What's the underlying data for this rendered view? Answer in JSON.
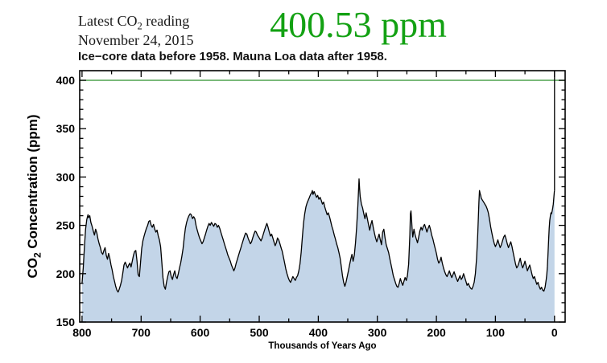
{
  "header": {
    "latest_label_pre": "Latest CO",
    "latest_label_sub": "2",
    "latest_label_post": " reading",
    "date": "November 24, 2015",
    "reading": "400.53 ppm",
    "subtitle": "Ice−core data before 1958. Mauna Loa data after 1958."
  },
  "colors": {
    "reading_green": "#13a113",
    "threshold_line_green": "#4fa44f",
    "area_fill": "#c3d5e8",
    "data_line": "#000000",
    "axis": "#000000"
  },
  "chart_data": {
    "type": "area",
    "xlabel": "Thousands of Years Ago",
    "ylabel_pre": "CO",
    "ylabel_sub": "2",
    "ylabel_post": " Concentration (ppm)",
    "x_ticks": [
      800,
      700,
      600,
      500,
      400,
      300,
      200,
      100,
      0
    ],
    "x_minor_step": 50,
    "y_ticks": [
      150,
      200,
      250,
      300,
      350,
      400
    ],
    "y_minor_step": 10,
    "xlim": [
      804,
      -18
    ],
    "ylim": [
      150,
      410
    ],
    "grid": false,
    "threshold_ppm": 400,
    "modern_spike": {
      "x": 0,
      "from_ppm": 286,
      "drawn_to_ppm": 410,
      "reading_ppm": 400.53
    },
    "points": [
      [
        800,
        190
      ],
      [
        798,
        206
      ],
      [
        796,
        228
      ],
      [
        794,
        246
      ],
      [
        792,
        256
      ],
      [
        790,
        261
      ],
      [
        789,
        258
      ],
      [
        787,
        260
      ],
      [
        785,
        253
      ],
      [
        783,
        249
      ],
      [
        781,
        244
      ],
      [
        779,
        240
      ],
      [
        777,
        246
      ],
      [
        775,
        242
      ],
      [
        773,
        236
      ],
      [
        771,
        231
      ],
      [
        769,
        227
      ],
      [
        767,
        222
      ],
      [
        765,
        220
      ],
      [
        763,
        224
      ],
      [
        761,
        227
      ],
      [
        759,
        219
      ],
      [
        757,
        215
      ],
      [
        755,
        221
      ],
      [
        753,
        216
      ],
      [
        751,
        209
      ],
      [
        749,
        204
      ],
      [
        747,
        197
      ],
      [
        745,
        192
      ],
      [
        743,
        187
      ],
      [
        741,
        183
      ],
      [
        739,
        181
      ],
      [
        737,
        184
      ],
      [
        735,
        188
      ],
      [
        733,
        193
      ],
      [
        731,
        201
      ],
      [
        729,
        209
      ],
      [
        727,
        212
      ],
      [
        725,
        209
      ],
      [
        723,
        206
      ],
      [
        721,
        209
      ],
      [
        719,
        211
      ],
      [
        717,
        207
      ],
      [
        715,
        213
      ],
      [
        713,
        219
      ],
      [
        711,
        223
      ],
      [
        709,
        224
      ],
      [
        707,
        213
      ],
      [
        705,
        199
      ],
      [
        703,
        197
      ],
      [
        701,
        212
      ],
      [
        699,
        226
      ],
      [
        697,
        234
      ],
      [
        695,
        239
      ],
      [
        693,
        243
      ],
      [
        691,
        247
      ],
      [
        689,
        250
      ],
      [
        687,
        254
      ],
      [
        685,
        255
      ],
      [
        683,
        250
      ],
      [
        681,
        248
      ],
      [
        679,
        251
      ],
      [
        677,
        246
      ],
      [
        675,
        243
      ],
      [
        673,
        245
      ],
      [
        671,
        239
      ],
      [
        669,
        235
      ],
      [
        667,
        228
      ],
      [
        665,
        212
      ],
      [
        663,
        196
      ],
      [
        661,
        187
      ],
      [
        659,
        184
      ],
      [
        657,
        191
      ],
      [
        655,
        197
      ],
      [
        653,
        202
      ],
      [
        651,
        203
      ],
      [
        649,
        197
      ],
      [
        647,
        194
      ],
      [
        645,
        199
      ],
      [
        643,
        203
      ],
      [
        641,
        197
      ],
      [
        639,
        195
      ],
      [
        637,
        200
      ],
      [
        635,
        206
      ],
      [
        633,
        211
      ],
      [
        631,
        218
      ],
      [
        629,
        226
      ],
      [
        627,
        237
      ],
      [
        625,
        247
      ],
      [
        623,
        253
      ],
      [
        621,
        257
      ],
      [
        619,
        260
      ],
      [
        617,
        262
      ],
      [
        615,
        261
      ],
      [
        613,
        257
      ],
      [
        611,
        259
      ],
      [
        609,
        257
      ],
      [
        607,
        250
      ],
      [
        605,
        245
      ],
      [
        603,
        241
      ],
      [
        601,
        237
      ],
      [
        599,
        234
      ],
      [
        597,
        231
      ],
      [
        595,
        233
      ],
      [
        593,
        237
      ],
      [
        591,
        241
      ],
      [
        589,
        245
      ],
      [
        587,
        249
      ],
      [
        585,
        252
      ],
      [
        583,
        250
      ],
      [
        581,
        253
      ],
      [
        579,
        251
      ],
      [
        577,
        249
      ],
      [
        575,
        252
      ],
      [
        573,
        251
      ],
      [
        571,
        248
      ],
      [
        569,
        250
      ],
      [
        567,
        247
      ],
      [
        565,
        243
      ],
      [
        563,
        239
      ],
      [
        561,
        235
      ],
      [
        559,
        231
      ],
      [
        557,
        227
      ],
      [
        555,
        223
      ],
      [
        553,
        219
      ],
      [
        551,
        216
      ],
      [
        549,
        213
      ],
      [
        547,
        209
      ],
      [
        545,
        206
      ],
      [
        543,
        203
      ],
      [
        541,
        206
      ],
      [
        539,
        211
      ],
      [
        537,
        215
      ],
      [
        535,
        219
      ],
      [
        533,
        223
      ],
      [
        531,
        227
      ],
      [
        529,
        231
      ],
      [
        527,
        235
      ],
      [
        525,
        239
      ],
      [
        523,
        242
      ],
      [
        521,
        241
      ],
      [
        519,
        237
      ],
      [
        517,
        234
      ],
      [
        515,
        231
      ],
      [
        513,
        233
      ],
      [
        511,
        237
      ],
      [
        509,
        241
      ],
      [
        507,
        244
      ],
      [
        505,
        243
      ],
      [
        503,
        240
      ],
      [
        501,
        238
      ],
      [
        499,
        236
      ],
      [
        497,
        234
      ],
      [
        495,
        237
      ],
      [
        493,
        241
      ],
      [
        491,
        245
      ],
      [
        489,
        249
      ],
      [
        487,
        252
      ],
      [
        485,
        248
      ],
      [
        483,
        243
      ],
      [
        481,
        239
      ],
      [
        479,
        241
      ],
      [
        477,
        237
      ],
      [
        475,
        233
      ],
      [
        473,
        229
      ],
      [
        471,
        232
      ],
      [
        469,
        237
      ],
      [
        467,
        235
      ],
      [
        465,
        231
      ],
      [
        463,
        227
      ],
      [
        461,
        223
      ],
      [
        459,
        217
      ],
      [
        457,
        211
      ],
      [
        455,
        205
      ],
      [
        453,
        200
      ],
      [
        451,
        196
      ],
      [
        449,
        193
      ],
      [
        447,
        191
      ],
      [
        445,
        194
      ],
      [
        443,
        197
      ],
      [
        441,
        195
      ],
      [
        439,
        193
      ],
      [
        437,
        196
      ],
      [
        435,
        198
      ],
      [
        433,
        203
      ],
      [
        431,
        210
      ],
      [
        429,
        222
      ],
      [
        427,
        238
      ],
      [
        425,
        252
      ],
      [
        423,
        262
      ],
      [
        421,
        269
      ],
      [
        419,
        273
      ],
      [
        417,
        276
      ],
      [
        415,
        279
      ],
      [
        413,
        282
      ],
      [
        411,
        284
      ],
      [
        410,
        286
      ],
      [
        409,
        282
      ],
      [
        407,
        285
      ],
      [
        405,
        282
      ],
      [
        403,
        279
      ],
      [
        401,
        281
      ],
      [
        399,
        277
      ],
      [
        397,
        279
      ],
      [
        395,
        276
      ],
      [
        393,
        272
      ],
      [
        391,
        274
      ],
      [
        389,
        269
      ],
      [
        387,
        265
      ],
      [
        385,
        261
      ],
      [
        383,
        263
      ],
      [
        381,
        259
      ],
      [
        379,
        254
      ],
      [
        377,
        249
      ],
      [
        375,
        245
      ],
      [
        373,
        240
      ],
      [
        371,
        236
      ],
      [
        369,
        231
      ],
      [
        367,
        227
      ],
      [
        365,
        222
      ],
      [
        363,
        216
      ],
      [
        361,
        207
      ],
      [
        359,
        198
      ],
      [
        357,
        191
      ],
      [
        355,
        187
      ],
      [
        353,
        191
      ],
      [
        351,
        197
      ],
      [
        349,
        203
      ],
      [
        347,
        209
      ],
      [
        345,
        215
      ],
      [
        343,
        220
      ],
      [
        341,
        213
      ],
      [
        339,
        219
      ],
      [
        337,
        232
      ],
      [
        335,
        248
      ],
      [
        333,
        270
      ],
      [
        331,
        298
      ],
      [
        330,
        288
      ],
      [
        329,
        280
      ],
      [
        327,
        272
      ],
      [
        325,
        268
      ],
      [
        323,
        262
      ],
      [
        321,
        257
      ],
      [
        319,
        263
      ],
      [
        317,
        257
      ],
      [
        315,
        251
      ],
      [
        313,
        245
      ],
      [
        311,
        251
      ],
      [
        309,
        255
      ],
      [
        307,
        248
      ],
      [
        305,
        242
      ],
      [
        303,
        237
      ],
      [
        301,
        233
      ],
      [
        299,
        237
      ],
      [
        297,
        241
      ],
      [
        295,
        235
      ],
      [
        293,
        230
      ],
      [
        291,
        243
      ],
      [
        289,
        246
      ],
      [
        287,
        237
      ],
      [
        285,
        230
      ],
      [
        283,
        226
      ],
      [
        281,
        222
      ],
      [
        279,
        216
      ],
      [
        277,
        210
      ],
      [
        275,
        204
      ],
      [
        273,
        198
      ],
      [
        271,
        194
      ],
      [
        269,
        190
      ],
      [
        267,
        187
      ],
      [
        265,
        186
      ],
      [
        263,
        190
      ],
      [
        261,
        195
      ],
      [
        259,
        191
      ],
      [
        257,
        188
      ],
      [
        255,
        192
      ],
      [
        253,
        196
      ],
      [
        251,
        193
      ],
      [
        249,
        198
      ],
      [
        247,
        210
      ],
      [
        245,
        240
      ],
      [
        244,
        262
      ],
      [
        243,
        265
      ],
      [
        242,
        255
      ],
      [
        241,
        245
      ],
      [
        240,
        238
      ],
      [
        239,
        242
      ],
      [
        238,
        246
      ],
      [
        236,
        240
      ],
      [
        234,
        236
      ],
      [
        232,
        232
      ],
      [
        230,
        238
      ],
      [
        228,
        244
      ],
      [
        226,
        248
      ],
      [
        224,
        245
      ],
      [
        222,
        249
      ],
      [
        220,
        251
      ],
      [
        218,
        247
      ],
      [
        216,
        243
      ],
      [
        214,
        247
      ],
      [
        212,
        250
      ],
      [
        210,
        246
      ],
      [
        208,
        240
      ],
      [
        206,
        236
      ],
      [
        204,
        231
      ],
      [
        202,
        226
      ],
      [
        200,
        221
      ],
      [
        198,
        215
      ],
      [
        196,
        211
      ],
      [
        194,
        213
      ],
      [
        192,
        217
      ],
      [
        190,
        211
      ],
      [
        188,
        206
      ],
      [
        186,
        202
      ],
      [
        184,
        199
      ],
      [
        182,
        197
      ],
      [
        180,
        200
      ],
      [
        178,
        203
      ],
      [
        176,
        199
      ],
      [
        174,
        196
      ],
      [
        172,
        199
      ],
      [
        170,
        202
      ],
      [
        168,
        198
      ],
      [
        166,
        195
      ],
      [
        164,
        192
      ],
      [
        162,
        195
      ],
      [
        160,
        198
      ],
      [
        158,
        194
      ],
      [
        156,
        196
      ],
      [
        154,
        200
      ],
      [
        152,
        196
      ],
      [
        150,
        192
      ],
      [
        148,
        188
      ],
      [
        146,
        190
      ],
      [
        144,
        187
      ],
      [
        142,
        185
      ],
      [
        140,
        184
      ],
      [
        138,
        187
      ],
      [
        136,
        191
      ],
      [
        134,
        200
      ],
      [
        132,
        216
      ],
      [
        130,
        240
      ],
      [
        129,
        258
      ],
      [
        128,
        274
      ],
      [
        127,
        286
      ],
      [
        126,
        283
      ],
      [
        125,
        281
      ],
      [
        124,
        278
      ],
      [
        122,
        276
      ],
      [
        120,
        274
      ],
      [
        118,
        272
      ],
      [
        116,
        270
      ],
      [
        114,
        267
      ],
      [
        112,
        263
      ],
      [
        110,
        256
      ],
      [
        108,
        248
      ],
      [
        106,
        242
      ],
      [
        104,
        236
      ],
      [
        102,
        231
      ],
      [
        100,
        228
      ],
      [
        98,
        231
      ],
      [
        96,
        235
      ],
      [
        94,
        231
      ],
      [
        92,
        227
      ],
      [
        90,
        230
      ],
      [
        88,
        234
      ],
      [
        86,
        238
      ],
      [
        84,
        240
      ],
      [
        82,
        236
      ],
      [
        80,
        231
      ],
      [
        78,
        227
      ],
      [
        76,
        230
      ],
      [
        74,
        233
      ],
      [
        72,
        228
      ],
      [
        70,
        222
      ],
      [
        68,
        216
      ],
      [
        66,
        210
      ],
      [
        64,
        206
      ],
      [
        62,
        208
      ],
      [
        60,
        212
      ],
      [
        58,
        216
      ],
      [
        56,
        210
      ],
      [
        54,
        206
      ],
      [
        52,
        209
      ],
      [
        50,
        213
      ],
      [
        48,
        208
      ],
      [
        46,
        203
      ],
      [
        44,
        206
      ],
      [
        42,
        209
      ],
      [
        40,
        204
      ],
      [
        38,
        199
      ],
      [
        36,
        195
      ],
      [
        34,
        197
      ],
      [
        32,
        193
      ],
      [
        30,
        189
      ],
      [
        28,
        191
      ],
      [
        26,
        187
      ],
      [
        24,
        184
      ],
      [
        22,
        186
      ],
      [
        20,
        183
      ],
      [
        18,
        182
      ],
      [
        16,
        186
      ],
      [
        14,
        194
      ],
      [
        13,
        200
      ],
      [
        12,
        208
      ],
      [
        11,
        220
      ],
      [
        10,
        235
      ],
      [
        9,
        247
      ],
      [
        8,
        255
      ],
      [
        7,
        260
      ],
      [
        6,
        263
      ],
      [
        5,
        262
      ],
      [
        4,
        265
      ],
      [
        3,
        268
      ],
      [
        2,
        272
      ],
      [
        1.5,
        276
      ],
      [
        1,
        280
      ],
      [
        0.5,
        283
      ],
      [
        0.2,
        285
      ],
      [
        0,
        286
      ]
    ]
  }
}
